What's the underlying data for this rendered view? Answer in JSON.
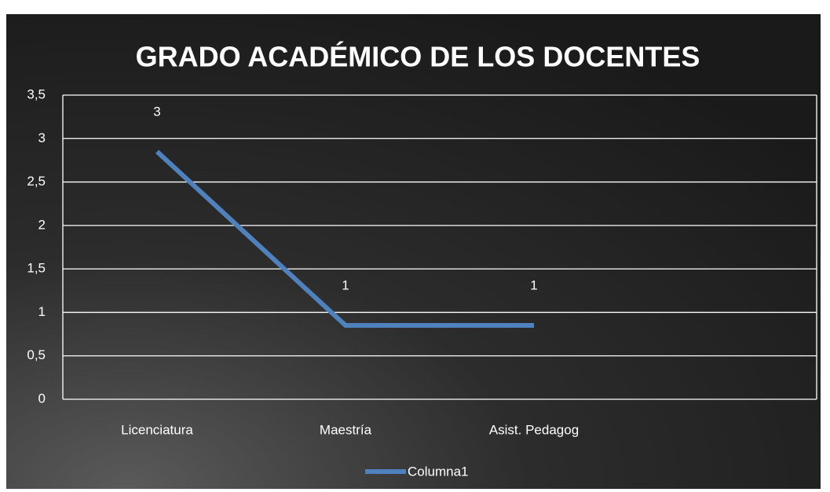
{
  "chart_data": {
    "type": "line",
    "title": "GRADO  ACADÉMICO  DE  LOS  DOCENTES",
    "categories": [
      "Licenciatura",
      "Maestría",
      "Asist. Pedagog",
      null
    ],
    "series": [
      {
        "name": "Columna1",
        "color": "#4f81bd",
        "values": [
          2.85,
          0.85,
          0.85,
          null
        ],
        "value_labels": [
          "3",
          "1",
          "1",
          null
        ]
      }
    ],
    "ylim": [
      0,
      3.5
    ],
    "yticks": [
      0,
      {
        "value": 0.5,
        "label": "0,5"
      },
      1,
      {
        "value": 1.5,
        "label": "1,5"
      },
      2,
      {
        "value": 2.5,
        "label": "2,5"
      },
      3,
      {
        "value": 3.5,
        "label": "3,5"
      }
    ],
    "grid": true,
    "legend": "bottom"
  }
}
